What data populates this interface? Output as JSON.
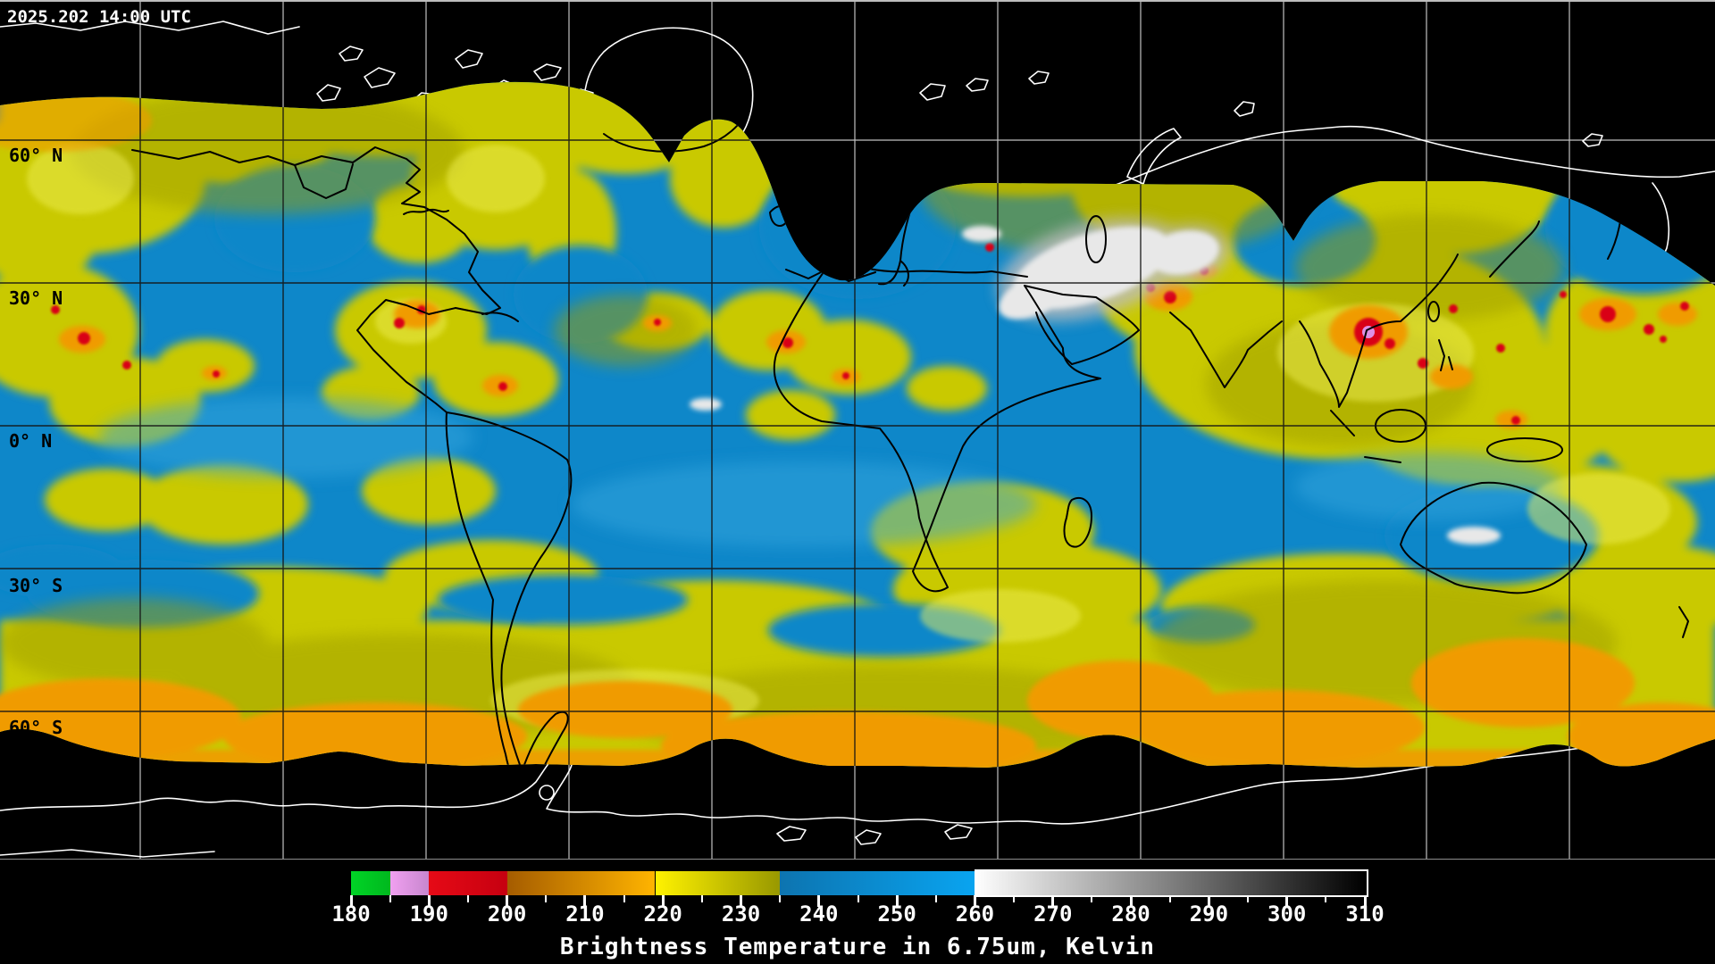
{
  "header": {
    "timestamp": "2025.202 14:00 UTC"
  },
  "map": {
    "latitude_labels": [
      "60° N",
      "30° N",
      "0° N",
      "30° S",
      "60° S"
    ],
    "colors": {
      "space_black": "#000000",
      "ocean_blue": "#0e87c9",
      "light_blue": "#35a5dd",
      "cloud_yellow": "#c9c900",
      "pale_yellow": "#eeee55",
      "olive_shade": "#9e9e00",
      "storm_orange": "#f09b00",
      "deep_orange": "#c97d00",
      "convection_red": "#d90013",
      "core_violet": "#de8fe2",
      "warm_white": "#e8e8e8",
      "warm_gray": "#bdbdbd",
      "coast_white": "#ffffff",
      "coast_black": "#000000",
      "grid_light": "#d8d8d8",
      "grid_dark": "#141414",
      "label_black": "#000000",
      "label_white": "#ffffff"
    }
  },
  "colorbar": {
    "title": "Brightness Temperature in 6.75um, Kelvin",
    "units": "Kelvin",
    "wavelength": "6.75um",
    "min": 180,
    "max": 310,
    "major_ticks": [
      180,
      190,
      200,
      210,
      220,
      230,
      240,
      250,
      260,
      270,
      280,
      290,
      300,
      310
    ],
    "minor_tick_step": 5,
    "framed_range": [
      260,
      310
    ],
    "segments": [
      {
        "from": 180,
        "to": 185,
        "color": "#00d426",
        "color2": "#00b81e",
        "label": "green"
      },
      {
        "from": 185,
        "to": 190,
        "color": "#f0a0f0",
        "color2": "#c786ce",
        "label": "violet"
      },
      {
        "from": 190,
        "to": 200,
        "color": "#e60a16",
        "color2": "#c60010",
        "label": "red"
      },
      {
        "from": 200,
        "to": 219,
        "color": "#a55c00",
        "color2": "#ffb400",
        "label": "orange"
      },
      {
        "from": 219,
        "to": 235,
        "color": "#fff200",
        "color2": "#989800",
        "label": "yellow-olive"
      },
      {
        "from": 235,
        "to": 260,
        "color": "#0d74b0",
        "color2": "#09a4f0",
        "label": "blue"
      },
      {
        "from": 260,
        "to": 310,
        "color": "#ffffff",
        "color2": "#000000",
        "label": "grayscale"
      }
    ]
  }
}
